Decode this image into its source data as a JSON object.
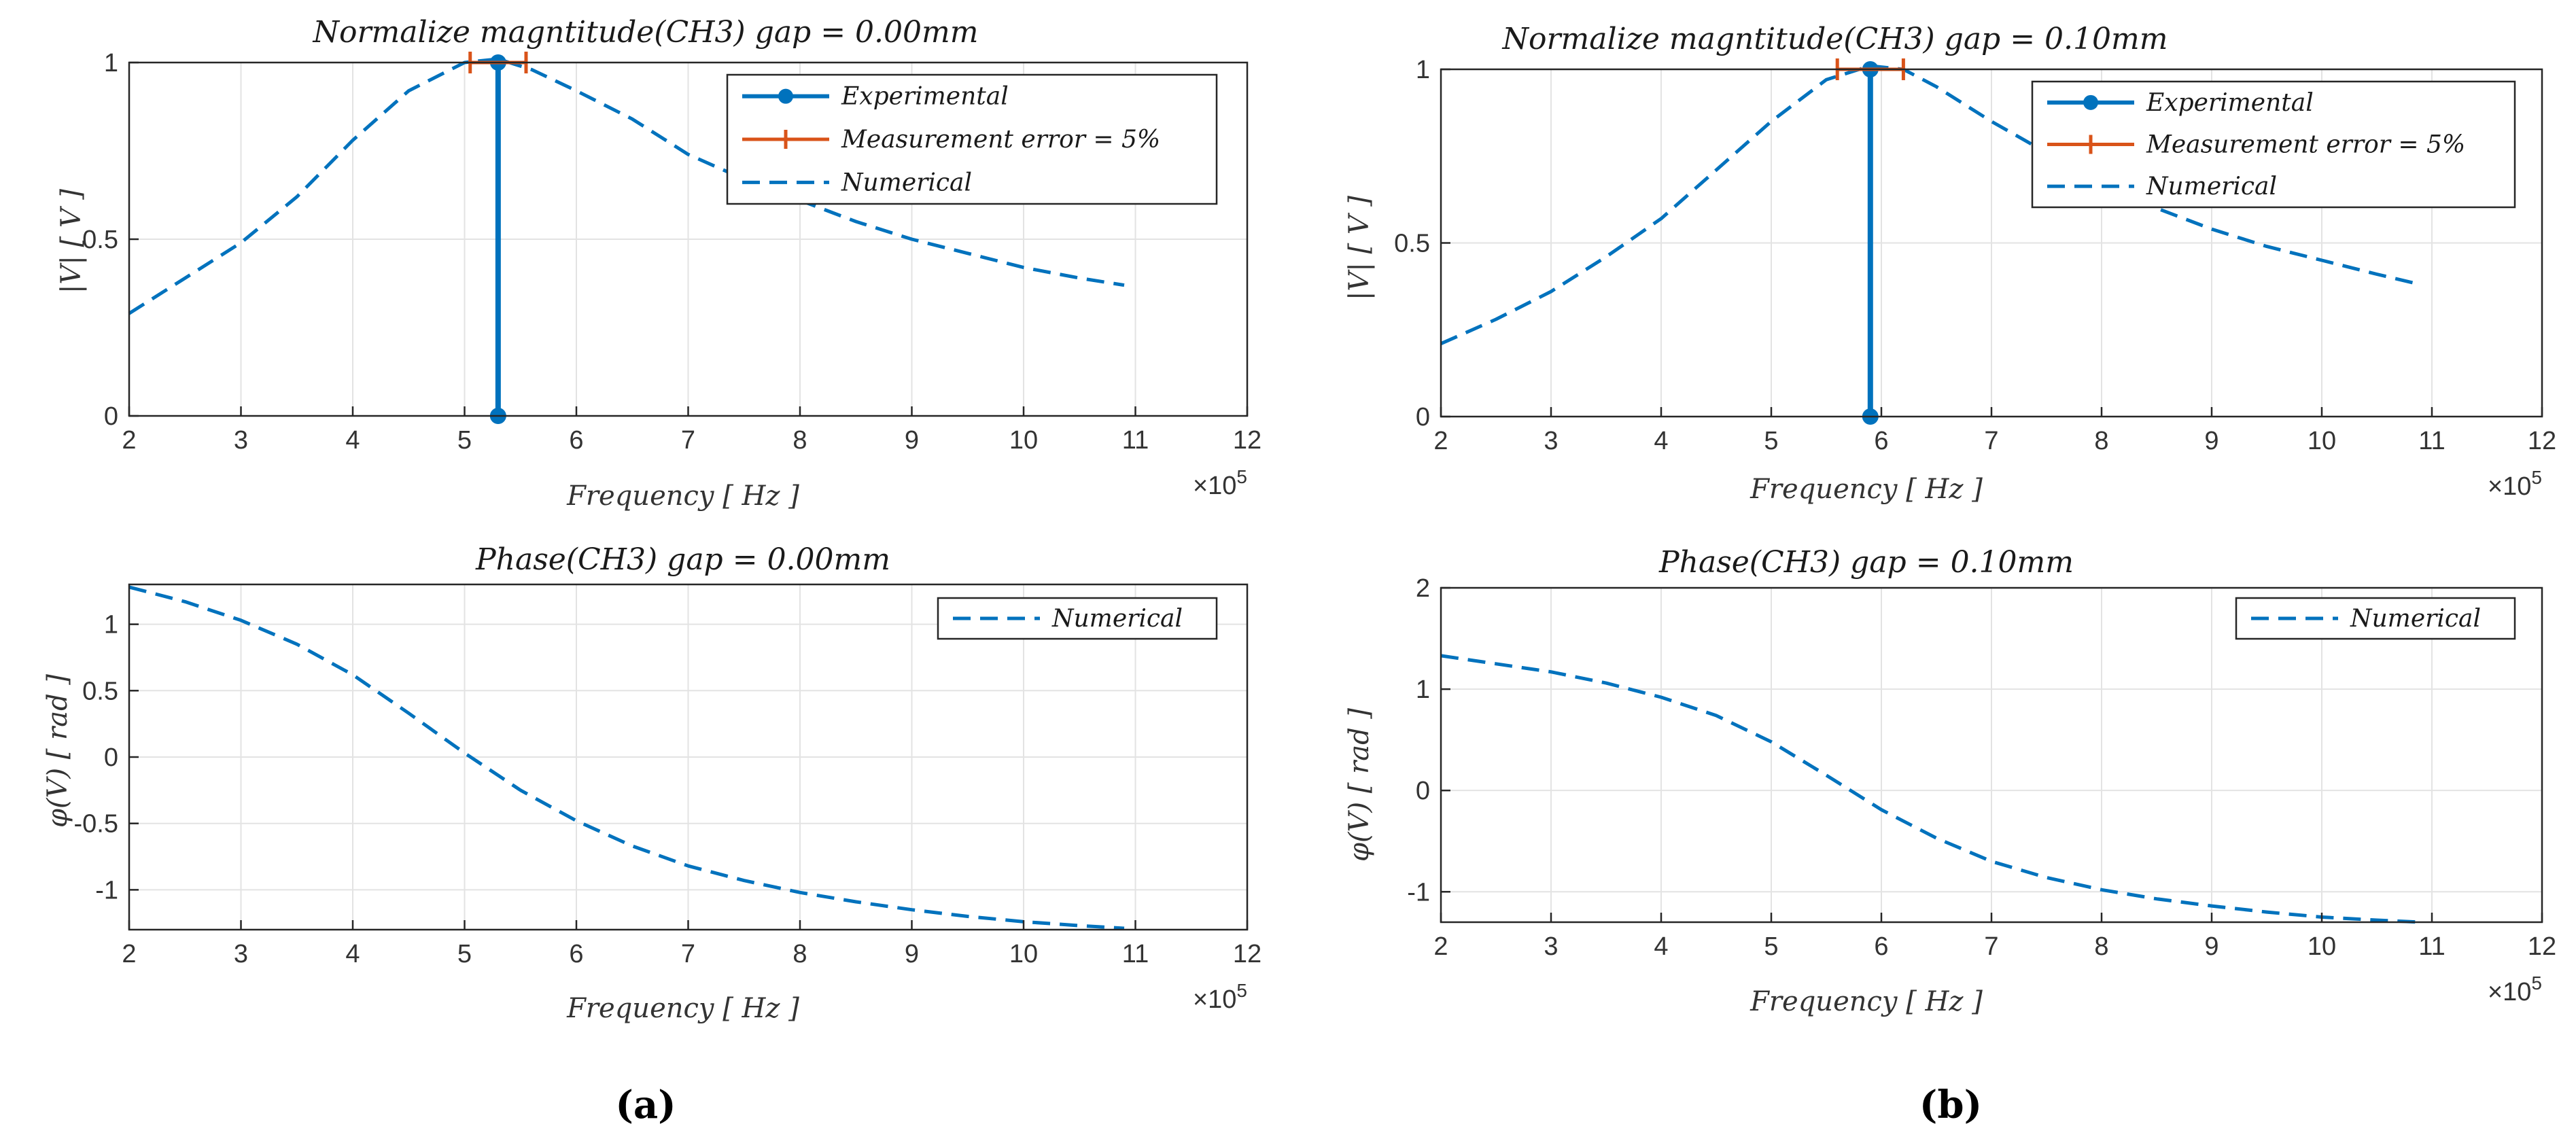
{
  "figure": {
    "panel_labels": [
      "(a)",
      "(b)"
    ],
    "colors": {
      "series": "#0072BD",
      "error": "#D95319",
      "grid": "#e3e3e3",
      "axis": "#262626"
    }
  },
  "chart_data": [
    {
      "id": "mag_a",
      "type": "line",
      "title": "Normalize magntitude(CH3) gap = 0.00mm",
      "xlabel": "Frequency [ Hz ]",
      "ylabel": "|V| [ V ]",
      "xlim": [
        2,
        12
      ],
      "ylim": [
        0,
        1
      ],
      "xticks": [
        2,
        3,
        4,
        5,
        6,
        7,
        8,
        9,
        10,
        11,
        12
      ],
      "yticks": [
        0,
        0.5,
        1
      ],
      "ytick_labels": [
        "0",
        "0.5",
        "1"
      ],
      "x_exponent": "×10^5",
      "grid": true,
      "legend_position": "top-right",
      "legend": [
        "Experimental",
        "Measurement error = 5%",
        "Numerical"
      ],
      "series": [
        {
          "name": "Numerical",
          "style": "dashed",
          "x": [
            2,
            2.5,
            3,
            3.5,
            4,
            4.5,
            5,
            5.3,
            5.6,
            6,
            6.5,
            7,
            7.5,
            8,
            8.5,
            9,
            9.5,
            10,
            10.5,
            10.9
          ],
          "y": [
            0.29,
            0.39,
            0.49,
            0.62,
            0.78,
            0.92,
            1.0,
            1.01,
            0.98,
            0.92,
            0.84,
            0.74,
            0.67,
            0.61,
            0.55,
            0.5,
            0.46,
            0.42,
            0.39,
            0.37
          ]
        },
        {
          "name": "Experimental",
          "style": "stem",
          "x": [
            5.3
          ],
          "y": [
            1.0
          ]
        }
      ],
      "error_bar": {
        "name": "Measurement error = 5%",
        "x": 5.3,
        "y": 1.0,
        "xmin": 5.05,
        "xmax": 5.55
      }
    },
    {
      "id": "phase_a",
      "type": "line",
      "title": "Phase(CH3) gap = 0.00mm",
      "xlabel": "Frequency [ Hz ]",
      "ylabel": "φ(V) [ rad ]",
      "xlim": [
        2,
        12
      ],
      "ylim": [
        -1.3,
        1.3
      ],
      "xticks": [
        2,
        3,
        4,
        5,
        6,
        7,
        8,
        9,
        10,
        11,
        12
      ],
      "yticks": [
        -1,
        -0.5,
        0,
        0.5,
        1
      ],
      "ytick_labels": [
        "-1",
        "-0.5",
        "0",
        "0.5",
        "1"
      ],
      "x_exponent": "×10^5",
      "grid": true,
      "legend_position": "top-right",
      "legend": [
        "Numerical"
      ],
      "series": [
        {
          "name": "Numerical",
          "style": "dashed",
          "x": [
            2,
            2.5,
            3,
            3.5,
            4,
            4.5,
            5,
            5.5,
            6,
            6.5,
            7,
            7.5,
            8,
            8.5,
            9,
            9.5,
            10,
            10.5,
            10.9
          ],
          "y": [
            1.28,
            1.17,
            1.03,
            0.85,
            0.62,
            0.33,
            0.03,
            -0.25,
            -0.48,
            -0.67,
            -0.82,
            -0.93,
            -1.02,
            -1.09,
            -1.15,
            -1.2,
            -1.24,
            -1.27,
            -1.29
          ]
        }
      ]
    },
    {
      "id": "mag_b",
      "type": "line",
      "title": "Normalize magntitude(CH3) gap = 0.10mm",
      "xlabel": "Frequency [ Hz ]",
      "ylabel": "|V| [ V ]",
      "xlim": [
        2,
        12
      ],
      "ylim": [
        0,
        1
      ],
      "xticks": [
        2,
        3,
        4,
        5,
        6,
        7,
        8,
        9,
        10,
        11,
        12
      ],
      "yticks": [
        0,
        0.5,
        1
      ],
      "ytick_labels": [
        "0",
        "0.5",
        "1"
      ],
      "x_exponent": "×10^5",
      "grid": true,
      "legend_position": "top-right",
      "legend": [
        "Experimental",
        "Measurement error = 5%",
        "Numerical"
      ],
      "series": [
        {
          "name": "Numerical",
          "style": "dashed",
          "x": [
            2,
            2.5,
            3,
            3.5,
            4,
            4.5,
            5,
            5.5,
            5.9,
            6.2,
            6.5,
            7,
            7.5,
            8,
            8.5,
            9,
            9.5,
            10,
            10.5,
            10.9
          ],
          "y": [
            0.21,
            0.28,
            0.36,
            0.46,
            0.57,
            0.71,
            0.85,
            0.97,
            1.01,
            1.0,
            0.95,
            0.85,
            0.76,
            0.68,
            0.6,
            0.54,
            0.49,
            0.45,
            0.41,
            0.38
          ]
        },
        {
          "name": "Experimental",
          "style": "stem",
          "x": [
            5.9
          ],
          "y": [
            1.0
          ]
        }
      ],
      "error_bar": {
        "name": "Measurement error = 5%",
        "x": 5.9,
        "y": 1.0,
        "xmin": 5.6,
        "xmax": 6.2
      }
    },
    {
      "id": "phase_b",
      "type": "line",
      "title": "Phase(CH3) gap = 0.10mm",
      "xlabel": "Frequency [ Hz ]",
      "ylabel": "φ(V) [ rad ]",
      "xlim": [
        2,
        12
      ],
      "ylim": [
        -1.3,
        2
      ],
      "xticks": [
        2,
        3,
        4,
        5,
        6,
        7,
        8,
        9,
        10,
        11,
        12
      ],
      "yticks": [
        -1,
        0,
        1,
        2
      ],
      "ytick_labels": [
        "-1",
        "0",
        "1",
        "2"
      ],
      "x_exponent": "×10^5",
      "grid": true,
      "legend_position": "top-right",
      "legend": [
        "Numerical"
      ],
      "series": [
        {
          "name": "Numerical",
          "style": "dashed",
          "x": [
            2,
            2.5,
            3,
            3.5,
            4,
            4.5,
            5,
            5.5,
            6,
            6.5,
            7,
            7.5,
            8,
            8.5,
            9,
            9.5,
            10,
            10.5,
            10.9
          ],
          "y": [
            1.33,
            1.25,
            1.17,
            1.06,
            0.92,
            0.74,
            0.48,
            0.15,
            -0.19,
            -0.47,
            -0.7,
            -0.86,
            -0.98,
            -1.07,
            -1.14,
            -1.2,
            -1.25,
            -1.28,
            -1.3
          ]
        }
      ]
    }
  ]
}
